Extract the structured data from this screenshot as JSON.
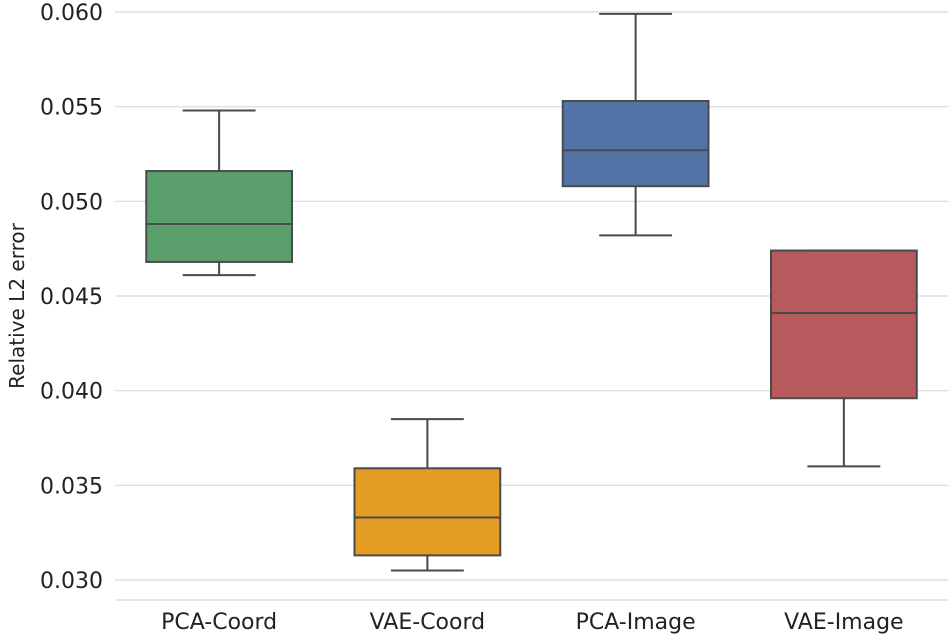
{
  "chart_data": {
    "type": "boxplot",
    "title": "",
    "xlabel": "",
    "ylabel": "Relative L2 error",
    "ylim": [
      0.03,
      0.06
    ],
    "y_ticks": [
      0.03,
      0.035,
      0.04,
      0.045,
      0.05,
      0.055,
      0.06
    ],
    "y_tick_labels": [
      "0.030",
      "0.035",
      "0.040",
      "0.045",
      "0.050",
      "0.055",
      "0.060"
    ],
    "grid": "horizontal",
    "categories": [
      "PCA-Coord",
      "VAE-Coord",
      "PCA-Image",
      "VAE-Image"
    ],
    "boxes": [
      {
        "name": "PCA-Coord",
        "color": "#5a9e6b",
        "whisker_low": 0.0461,
        "q1": 0.0468,
        "median": 0.0488,
        "q3": 0.0516,
        "whisker_high": 0.0548
      },
      {
        "name": "VAE-Coord",
        "color": "#e39d22",
        "whisker_low": 0.0305,
        "q1": 0.0313,
        "median": 0.0333,
        "q3": 0.0359,
        "whisker_high": 0.0385
      },
      {
        "name": "PCA-Image",
        "color": "#5372a6",
        "whisker_low": 0.0482,
        "q1": 0.0508,
        "median": 0.0527,
        "q3": 0.0553,
        "whisker_high": 0.0599
      },
      {
        "name": "VAE-Image",
        "color": "#b65a5e",
        "whisker_low": 0.036,
        "q1": 0.0396,
        "median": 0.0441,
        "q3": 0.0474,
        "whisker_high": 0.0474
      }
    ]
  }
}
